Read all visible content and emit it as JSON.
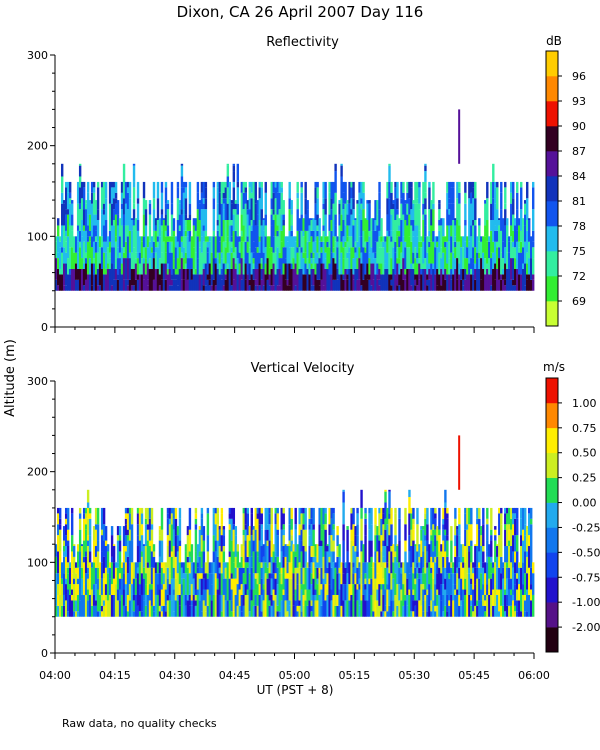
{
  "figure": {
    "title": "Dixon, CA 26 April 2007  Day 116",
    "shared_ylabel": "Altitude (m)",
    "footnote": "Raw data, no quality checks"
  },
  "chart_data": [
    {
      "type": "heatmap",
      "title": "Reflectivity",
      "ylabel": "Altitude (m)",
      "xlabel": "UT  (PST + 8)",
      "x_range": [
        "04:00",
        "06:00"
      ],
      "ylim": [
        0,
        300
      ],
      "yticks": [
        0,
        100,
        200,
        300
      ],
      "ytick_labels": [
        "0",
        "100",
        "200",
        "300"
      ],
      "xticks": [
        "04:00",
        "04:15",
        "04:30",
        "04:45",
        "05:00",
        "05:15",
        "05:30",
        "05:45",
        "06:00"
      ],
      "xtick_labels_shown": false,
      "data_extent": {
        "min_altitude_m": 40,
        "typical_top_m": 160,
        "max_spike_m": 240,
        "spike_time": "05:41"
      },
      "colorbar": {
        "unit": "dB",
        "ticks": [
          "69",
          "72",
          "75",
          "78",
          "81",
          "84",
          "87",
          "90",
          "93",
          "96"
        ],
        "colors": [
          "#c8ff33",
          "#33ee33",
          "#33eea0",
          "#22bbee",
          "#1155ee",
          "#1133bb",
          "#551199",
          "#330022",
          "#ee1100",
          "#ff8800",
          "#ffcc00"
        ]
      }
    },
    {
      "type": "heatmap",
      "title": "Vertical Velocity",
      "ylabel": "Altitude (m)",
      "xlabel": "UT  (PST + 8)",
      "x_range": [
        "04:00",
        "06:00"
      ],
      "ylim": [
        0,
        300
      ],
      "yticks": [
        0,
        100,
        200,
        300
      ],
      "ytick_labels": [
        "0",
        "100",
        "200",
        "300"
      ],
      "xticks": [
        "04:00",
        "04:15",
        "04:30",
        "04:45",
        "05:00",
        "05:15",
        "05:30",
        "05:45",
        "06:00"
      ],
      "xtick_labels": [
        "04:00",
        "04:15",
        "04:30",
        "04:45",
        "05:00",
        "05:15",
        "05:30",
        "05:45",
        "06:00"
      ],
      "data_extent": {
        "min_altitude_m": 40,
        "typical_top_m": 160,
        "max_spike_m": 240,
        "spike_time": "05:41"
      },
      "colorbar": {
        "unit": "m/s",
        "ticks": [
          "-2.00",
          "-1.00",
          "-0.75",
          "-0.50",
          "-0.25",
          "0.00",
          "0.25",
          "0.50",
          "0.75",
          "1.00"
        ],
        "colors": [
          "#220011",
          "#551188",
          "#2211cc",
          "#1144ee",
          "#1177ee",
          "#22aaee",
          "#22dd55",
          "#ccee22",
          "#ffee00",
          "#ff8800",
          "#ee1100"
        ]
      }
    }
  ]
}
